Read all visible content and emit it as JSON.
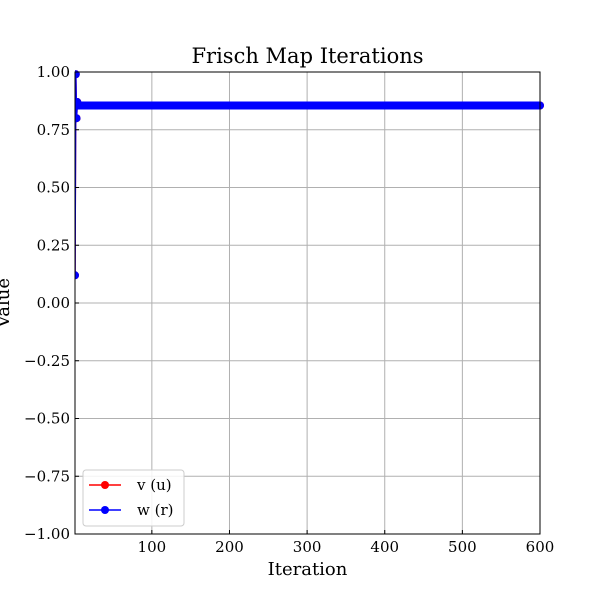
{
  "chart_data": {
    "type": "line",
    "title": "Frisch Map Iterations",
    "xlabel": "Iteration",
    "ylabel": "Value",
    "xlim": [
      1,
      600
    ],
    "ylim": [
      -1.0,
      1.0
    ],
    "xticks": [
      100,
      200,
      300,
      400,
      500,
      600
    ],
    "xtick_labels": [
      "100",
      "200",
      "300",
      "400",
      "500",
      "600"
    ],
    "yticks": [
      -1.0,
      -0.75,
      -0.5,
      -0.25,
      0.0,
      0.25,
      0.5,
      0.75,
      1.0
    ],
    "ytick_labels": [
      "−1.00",
      "−0.75",
      "−0.50",
      "−0.25",
      "0.00",
      "0.25",
      "0.50",
      "0.75",
      "1.00"
    ],
    "grid": true,
    "legend_position": "lower-left",
    "series": [
      {
        "name": "v (u)",
        "color": "#ff0000",
        "marker": "circle",
        "initial": [
          0.12,
          0.99,
          0.8,
          0.87
        ],
        "steady_value": 0.855,
        "steady_from": 5,
        "steady_to": 600
      },
      {
        "name": "w (r)",
        "color": "#0000ff",
        "marker": "circle",
        "initial": [
          0.12,
          0.99,
          0.8,
          0.87
        ],
        "steady_value": 0.855,
        "steady_from": 5,
        "steady_to": 600
      }
    ]
  }
}
